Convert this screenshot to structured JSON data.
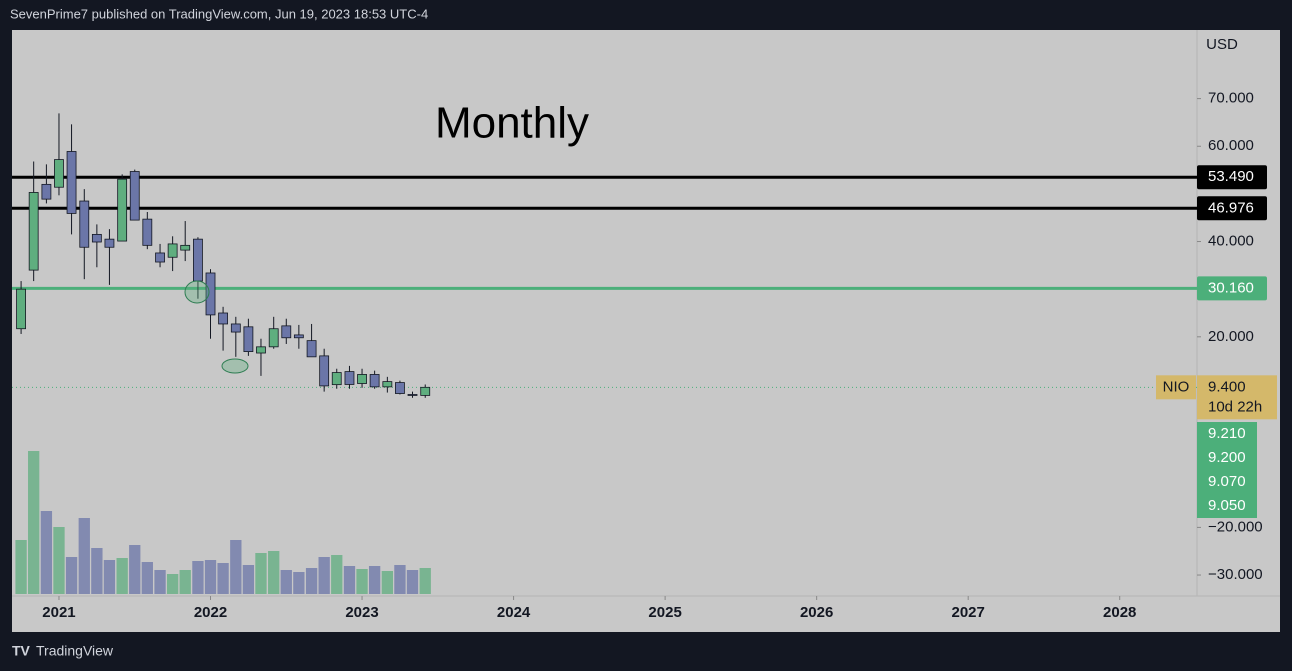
{
  "header": "SevenPrime7 published on TradingView.com, Jun 19, 2023 18:53 UTC-4",
  "footer": "TradingView",
  "chart_data": {
    "type": "candlestick",
    "title": "Monthly",
    "y_unit": "USD",
    "symbol": "NIO",
    "countdown": "10d 22h",
    "x": [
      2020.75,
      2020.833,
      2020.917,
      2021.0,
      2021.083,
      2021.167,
      2021.25,
      2021.333,
      2021.417,
      2021.5,
      2021.583,
      2021.667,
      2021.75,
      2021.833,
      2021.917,
      2022.0,
      2022.083,
      2022.167,
      2022.25,
      2022.333,
      2022.417,
      2022.5,
      2022.583,
      2022.667,
      2022.75,
      2022.833,
      2022.917,
      2023.0,
      2023.083,
      2023.167,
      2023.25,
      2023.333,
      2023.417
    ],
    "open": [
      21.7,
      34,
      52,
      51.4,
      58.9,
      48.5,
      41.5,
      40.5,
      40.1,
      54.7,
      44.7,
      37.6,
      36.7,
      38.2,
      40.5,
      33.4,
      25,
      22.7,
      22.1,
      16.6,
      17.9,
      22.3,
      20.4,
      19.2,
      16,
      9.96,
      12.7,
      10.2,
      12.1,
      9.5,
      10.4,
      7.9,
      7.7
    ],
    "high": [
      31.7,
      56.8,
      56.2,
      66.9,
      64.6,
      51,
      43.6,
      42.6,
      54.1,
      55.1,
      46.2,
      39.5,
      41.1,
      44.3,
      40.9,
      34.2,
      26.3,
      24.2,
      23.8,
      19.6,
      24.2,
      23.8,
      22.5,
      22.7,
      17.5,
      13.3,
      13.9,
      13.3,
      12.9,
      11.6,
      10.8,
      8.5,
      10
    ],
    "low": [
      20.6,
      31.7,
      48,
      49.7,
      41.5,
      32.1,
      34.6,
      30.9,
      40.1,
      44.5,
      38.4,
      34.6,
      33.8,
      35.9,
      28,
      19.6,
      17.1,
      15.8,
      16,
      11.8,
      17.5,
      18.5,
      17.5,
      15.8,
      8.5,
      9.1,
      9.1,
      9.3,
      9.1,
      8.3,
      7.9,
      7.2,
      7.2
    ],
    "close": [
      30,
      50.3,
      48.9,
      57.2,
      45.9,
      38.8,
      39.9,
      38.8,
      53.1,
      44.5,
      39.2,
      35.7,
      39.5,
      39.2,
      31.7,
      24.6,
      22.7,
      21,
      16.9,
      17.9,
      21.7,
      19.8,
      19.8,
      15.8,
      9.7,
      12.5,
      10,
      12.1,
      9.5,
      10.6,
      8.1,
      7.7,
      9.4
    ],
    "volume": [
      54,
      143,
      83,
      67,
      37,
      76,
      46,
      34,
      36,
      49,
      32,
      24,
      20,
      24,
      33,
      34,
      31,
      54,
      29,
      41,
      43,
      24,
      22,
      26,
      37,
      39,
      28,
      25,
      28,
      23,
      29,
      24,
      26
    ],
    "up_color": "#5fae7f",
    "down_color": "#6b76a8",
    "xlim": [
      2020.69,
      2028.51
    ],
    "xticks": [
      2021,
      2022,
      2023,
      2024,
      2025,
      2026,
      2027,
      2028
    ],
    "ylim": [
      -34.4,
      84.4
    ],
    "yticks": [
      {
        "value": 70,
        "label": "70.000"
      },
      {
        "value": 60,
        "label": "60.000"
      },
      {
        "value": 40,
        "label": "40.000"
      },
      {
        "value": 20,
        "label": "20.000"
      },
      {
        "value": -20,
        "label": "−20.000"
      },
      {
        "value": -30,
        "label": "−30.000"
      }
    ],
    "levels": [
      {
        "value": 53.49,
        "label": "53.490",
        "color": "#000000"
      },
      {
        "value": 46.976,
        "label": "46.976",
        "color": "#000000"
      },
      {
        "value": 30.16,
        "label": "30.160",
        "color": "#4caf7a"
      }
    ],
    "last_price": {
      "value": 9.4,
      "label": "9.400"
    },
    "price_labels": [
      {
        "value": 9.21,
        "label": "9.210"
      },
      {
        "value": 9.2,
        "label": "9.200"
      },
      {
        "value": 9.07,
        "label": "9.070"
      },
      {
        "value": 9.05,
        "label": "9.050"
      }
    ]
  }
}
